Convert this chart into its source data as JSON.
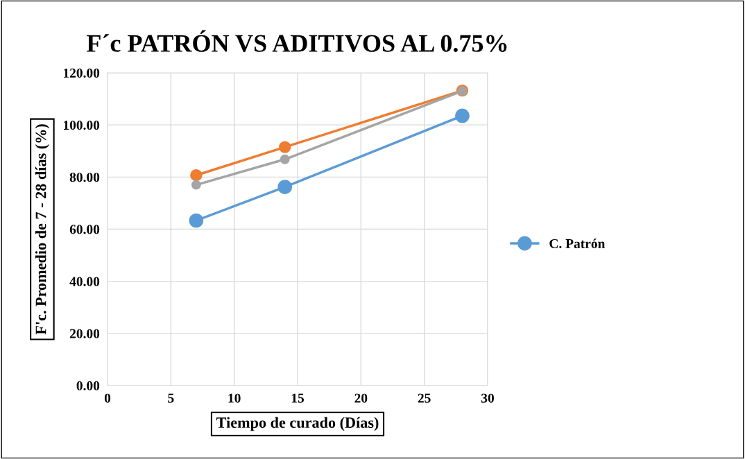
{
  "chart_data": {
    "type": "line",
    "title": "F´c PATRÓN VS ADITIVOS AL 0.75%",
    "xlabel": "Tiempo de curado (Días)",
    "ylabel": "F'c. Promedio de 7 - 28 días (%)",
    "x": [
      7,
      14,
      28
    ],
    "series": [
      {
        "name": "C. Patrón",
        "color": "#5b9bd5",
        "values": [
          63.3,
          76.2,
          103.5
        ]
      },
      {
        "color": "#ed7d31",
        "values": [
          80.7,
          91.5,
          113.2
        ]
      },
      {
        "color": "#a5a5a5",
        "values": [
          77.0,
          86.8,
          113.0
        ]
      }
    ],
    "xlim": [
      0,
      30
    ],
    "xticks": [
      0,
      5,
      10,
      15,
      20,
      25,
      30
    ],
    "ylim": [
      0,
      120
    ],
    "yticks": [
      {
        "value": 0,
        "label": "0.00"
      },
      {
        "value": 20,
        "label": "20.00"
      },
      {
        "value": 40,
        "label": "40.00"
      },
      {
        "value": 60,
        "label": "60.00"
      },
      {
        "value": 80,
        "label": "80.00"
      },
      {
        "value": 100,
        "label": "100.00"
      },
      {
        "value": 120,
        "label": "120.00"
      }
    ],
    "grid": true,
    "legend": "right",
    "marker": "circle",
    "line_style": "solid"
  }
}
